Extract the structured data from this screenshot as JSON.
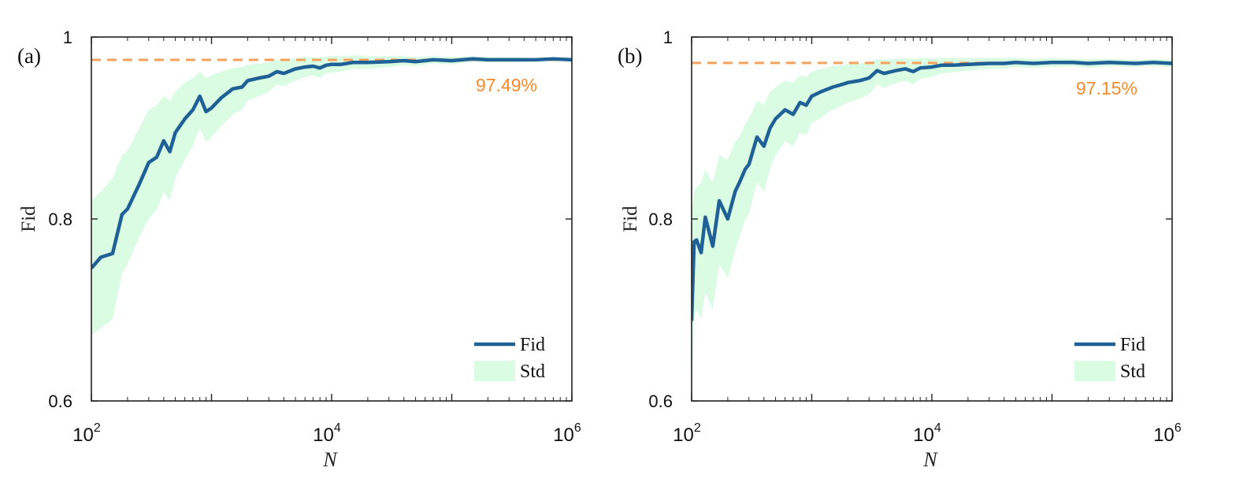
{
  "colors": {
    "fid_line": "#1f6095",
    "std_fill": "#d9fce3",
    "reference": "#f7a25c",
    "reference_text": "#f58a2a",
    "axis": "#222222"
  },
  "chart_data": [
    {
      "type": "line",
      "panel_label": "(a)",
      "xlabel": "N",
      "ylabel": "Fid",
      "xscale": "log",
      "xlim": [
        100,
        1000000
      ],
      "ylim": [
        0.6,
        1.0
      ],
      "x_ticks": [
        {
          "base": "10",
          "exp": "2"
        },
        {
          "base": "10",
          "exp": "4"
        },
        {
          "base": "10",
          "exp": "6"
        }
      ],
      "y_ticks": [
        "0.6",
        "0.8",
        "1"
      ],
      "legend": [
        {
          "label": "Fid",
          "kind": "line"
        },
        {
          "label": "Std",
          "kind": "patch"
        }
      ],
      "legend_position": "bottom-right",
      "reference": {
        "value": 0.9749,
        "label": "97.49%"
      },
      "series": [
        {
          "name": "Fid",
          "x": [
            100,
            120,
            150,
            180,
            200,
            250,
            300,
            350,
            400,
            450,
            500,
            600,
            700,
            800,
            900,
            1000,
            1200,
            1500,
            1800,
            2000,
            2500,
            3000,
            3500,
            4000,
            5000,
            6000,
            7000,
            8000,
            9000,
            10000,
            12000,
            15000,
            20000,
            30000,
            40000,
            50000,
            70000,
            100000,
            150000,
            200000,
            300000,
            500000,
            700000,
            1000000
          ],
          "values": [
            0.746,
            0.758,
            0.762,
            0.805,
            0.811,
            0.838,
            0.862,
            0.868,
            0.886,
            0.874,
            0.895,
            0.91,
            0.92,
            0.935,
            0.918,
            0.922,
            0.933,
            0.943,
            0.945,
            0.952,
            0.955,
            0.957,
            0.962,
            0.96,
            0.965,
            0.967,
            0.968,
            0.966,
            0.969,
            0.97,
            0.97,
            0.972,
            0.972,
            0.973,
            0.974,
            0.973,
            0.975,
            0.974,
            0.976,
            0.975,
            0.975,
            0.975,
            0.976,
            0.975
          ]
        },
        {
          "name": "Std",
          "x": [
            100,
            120,
            150,
            180,
            200,
            250,
            300,
            350,
            400,
            450,
            500,
            600,
            700,
            800,
            900,
            1000,
            1200,
            1500,
            1800,
            2000,
            2500,
            3000,
            3500,
            4000,
            5000,
            6000,
            7000,
            8000,
            9000,
            10000,
            12000,
            15000,
            20000,
            30000,
            40000,
            50000,
            70000,
            100000,
            150000,
            200000,
            300000,
            500000,
            700000,
            1000000
          ],
          "upper": [
            0.82,
            0.83,
            0.845,
            0.87,
            0.875,
            0.9,
            0.92,
            0.925,
            0.935,
            0.93,
            0.94,
            0.95,
            0.955,
            0.962,
            0.955,
            0.958,
            0.962,
            0.966,
            0.967,
            0.97,
            0.971,
            0.972,
            0.975,
            0.974,
            0.977,
            0.978,
            0.978,
            0.977,
            0.979,
            0.979,
            0.979,
            0.98,
            0.979,
            0.979,
            0.979,
            0.978,
            0.979,
            0.978,
            0.979,
            0.978,
            0.978,
            0.977,
            0.978,
            0.977
          ],
          "lower": [
            0.672,
            0.68,
            0.69,
            0.74,
            0.75,
            0.78,
            0.8,
            0.81,
            0.83,
            0.82,
            0.845,
            0.865,
            0.88,
            0.9,
            0.885,
            0.89,
            0.902,
            0.915,
            0.92,
            0.93,
            0.935,
            0.94,
            0.948,
            0.946,
            0.952,
            0.956,
            0.958,
            0.955,
            0.96,
            0.961,
            0.962,
            0.965,
            0.965,
            0.967,
            0.969,
            0.968,
            0.971,
            0.97,
            0.973,
            0.972,
            0.972,
            0.973,
            0.974,
            0.973
          ]
        }
      ]
    },
    {
      "type": "line",
      "panel_label": "(b)",
      "xlabel": "N",
      "ylabel": "Fid",
      "xscale": "log",
      "xlim": [
        100,
        1000000
      ],
      "ylim": [
        0.6,
        1.0
      ],
      "x_ticks": [
        {
          "base": "10",
          "exp": "2"
        },
        {
          "base": "10",
          "exp": "4"
        },
        {
          "base": "10",
          "exp": "6"
        }
      ],
      "y_ticks": [
        "0.6",
        "0.8",
        "1"
      ],
      "legend": [
        {
          "label": "Fid",
          "kind": "line"
        },
        {
          "label": "Std",
          "kind": "patch"
        }
      ],
      "legend_position": "bottom-right",
      "reference": {
        "value": 0.9715,
        "label": "97.15%"
      },
      "series": [
        {
          "name": "Fid",
          "x": [
            100,
            105,
            110,
            120,
            130,
            150,
            170,
            200,
            230,
            250,
            280,
            300,
            350,
            400,
            450,
            500,
            600,
            700,
            800,
            900,
            1000,
            1200,
            1500,
            1800,
            2000,
            2500,
            3000,
            3500,
            4000,
            5000,
            6000,
            7000,
            8000,
            10000,
            12000,
            15000,
            20000,
            30000,
            40000,
            50000,
            70000,
            100000,
            150000,
            200000,
            300000,
            500000,
            700000,
            1000000
          ],
          "values": [
            0.688,
            0.775,
            0.777,
            0.763,
            0.802,
            0.77,
            0.82,
            0.8,
            0.83,
            0.84,
            0.855,
            0.86,
            0.89,
            0.88,
            0.9,
            0.91,
            0.92,
            0.915,
            0.928,
            0.925,
            0.935,
            0.94,
            0.945,
            0.948,
            0.95,
            0.952,
            0.955,
            0.963,
            0.96,
            0.963,
            0.965,
            0.962,
            0.966,
            0.967,
            0.969,
            0.969,
            0.97,
            0.971,
            0.971,
            0.972,
            0.971,
            0.972,
            0.972,
            0.971,
            0.972,
            0.971,
            0.972,
            0.971
          ]
        },
        {
          "name": "Std",
          "x": [
            100,
            105,
            110,
            120,
            130,
            150,
            170,
            200,
            230,
            250,
            280,
            300,
            350,
            400,
            450,
            500,
            600,
            700,
            800,
            900,
            1000,
            1200,
            1500,
            1800,
            2000,
            2500,
            3000,
            3500,
            4000,
            5000,
            6000,
            7000,
            8000,
            10000,
            12000,
            15000,
            20000,
            30000,
            40000,
            50000,
            70000,
            100000,
            150000,
            200000,
            300000,
            500000,
            700000,
            1000000
          ],
          "upper": [
            0.8,
            0.83,
            0.835,
            0.84,
            0.855,
            0.84,
            0.87,
            0.865,
            0.885,
            0.89,
            0.905,
            0.91,
            0.93,
            0.925,
            0.94,
            0.945,
            0.952,
            0.95,
            0.958,
            0.956,
            0.962,
            0.965,
            0.968,
            0.969,
            0.97,
            0.971,
            0.972,
            0.976,
            0.975,
            0.976,
            0.977,
            0.976,
            0.977,
            0.977,
            0.977,
            0.977,
            0.977,
            0.977,
            0.977,
            0.977,
            0.976,
            0.977,
            0.976,
            0.976,
            0.976,
            0.975,
            0.976,
            0.975
          ],
          "lower": [
            0.6,
            0.69,
            0.7,
            0.69,
            0.72,
            0.7,
            0.75,
            0.735,
            0.765,
            0.78,
            0.8,
            0.805,
            0.84,
            0.83,
            0.855,
            0.87,
            0.885,
            0.88,
            0.895,
            0.892,
            0.905,
            0.912,
            0.92,
            0.925,
            0.928,
            0.932,
            0.937,
            0.948,
            0.944,
            0.949,
            0.952,
            0.948,
            0.954,
            0.956,
            0.96,
            0.961,
            0.963,
            0.965,
            0.965,
            0.967,
            0.966,
            0.967,
            0.968,
            0.966,
            0.968,
            0.967,
            0.968,
            0.967
          ]
        }
      ]
    }
  ]
}
